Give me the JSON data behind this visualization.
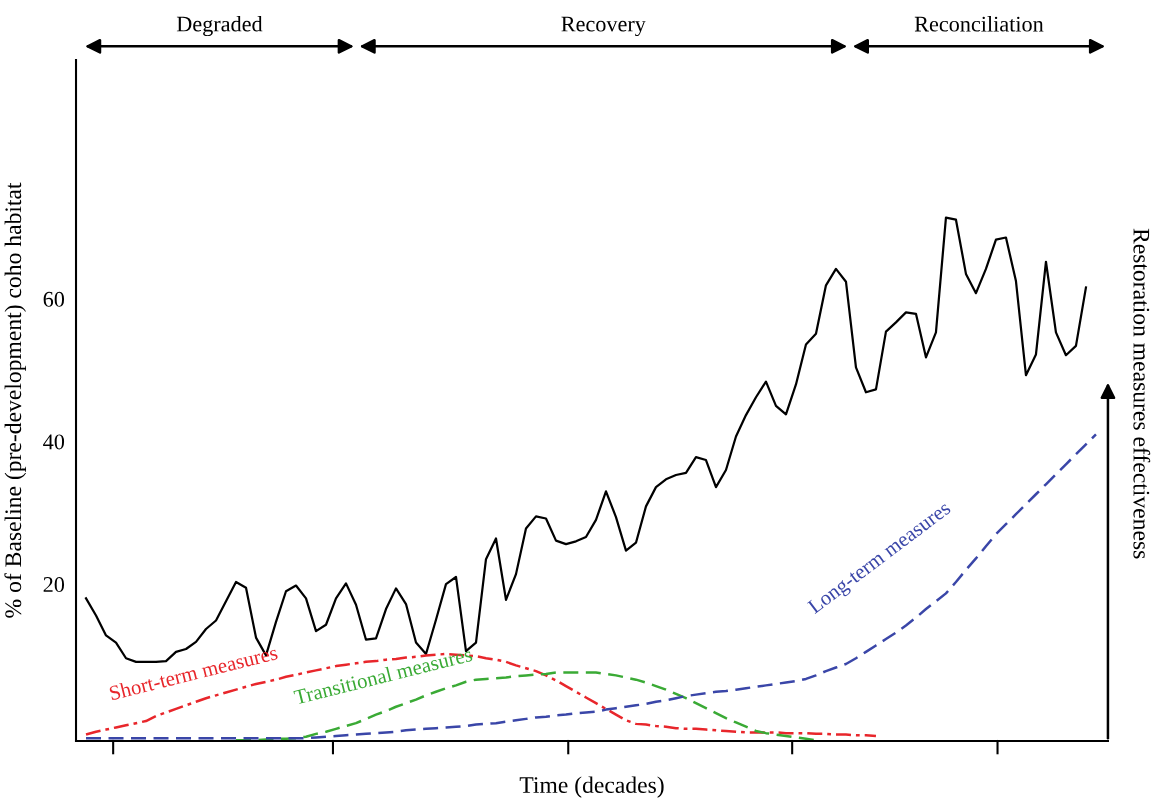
{
  "chart_data": {
    "type": "line",
    "xlabel": "Time (decades)",
    "ylabel": "% of Baseline (pre-development) coho habitat",
    "y2label": "Restoration measures effectiveness",
    "ylim": [
      -2,
      93.5
    ],
    "yticks": [
      20,
      40,
      60
    ],
    "grid": false,
    "legend": false,
    "annotations": [
      "Degraded",
      "Recovery",
      "Reconciliation"
    ],
    "categories": [
      null,
      null,
      null,
      null,
      null,
      null,
      null,
      null,
      null,
      null,
      null,
      null,
      null,
      null,
      null,
      null,
      null,
      null,
      null,
      null,
      null,
      null,
      null,
      null,
      null,
      null,
      null,
      null,
      null,
      null,
      null,
      null,
      null,
      null,
      null,
      null,
      null,
      null,
      null,
      null,
      null,
      null,
      null,
      null,
      null,
      null,
      null,
      null,
      null,
      null,
      null,
      null,
      null,
      null,
      null,
      null,
      null,
      null,
      null,
      null,
      null,
      null,
      null,
      null,
      null,
      null,
      null,
      null,
      null,
      null,
      null,
      null,
      null,
      null,
      null,
      null,
      null,
      null,
      null,
      null,
      null,
      null,
      null,
      null,
      null,
      null,
      null,
      null,
      null,
      null,
      null,
      null,
      null,
      null,
      null,
      null,
      null,
      null,
      null,
      null,
      null,
      null
    ],
    "series": [
      {
        "color": "#000000",
        "line_style": "solid",
        "values": [
          18.0,
          15.6,
          12.8,
          11.8,
          9.6,
          9.1,
          9.1,
          9.1,
          9.2,
          10.5,
          10.9,
          11.9,
          13.7,
          14.9,
          17.6,
          20.3,
          19.5,
          12.5,
          10.0,
          14.7,
          19.0,
          19.8,
          18.0,
          13.4,
          14.3,
          18.0,
          20.1,
          17.1,
          12.2,
          12.4,
          16.5,
          19.4,
          17.2,
          11.8,
          10.2,
          15.0,
          20.0,
          21.0,
          10.6,
          11.8,
          23.5,
          26.4,
          17.8,
          21.4,
          27.8,
          29.5,
          29.2,
          26.1,
          25.6,
          26.0,
          26.6,
          29.0,
          33.0,
          29.4,
          24.7,
          25.8,
          30.9,
          33.6,
          34.7,
          35.3,
          35.6,
          37.8,
          37.4,
          33.6,
          36.0,
          40.7,
          43.7,
          46.2,
          48.4,
          45.0,
          43.8,
          48.0,
          53.6,
          55.1,
          61.9,
          64.2,
          62.4,
          50.4,
          46.9,
          47.3,
          55.4,
          56.7,
          58.1,
          57.9,
          51.8,
          55.3,
          71.4,
          71.1,
          63.5,
          60.8,
          64.2,
          68.3,
          68.6,
          62.5,
          49.3,
          52.2,
          65.2,
          55.3,
          52.1,
          53.4,
          61.6,
          null
        ]
      },
      {
        "name": "Short-term measures",
        "color": "#e8262b",
        "line_style": "dashdot",
        "values": [
          -1.1,
          -0.7,
          -0.4,
          -0.1,
          0.2,
          0.5,
          0.8,
          1.5,
          2.0,
          2.5,
          3.0,
          3.5,
          4.0,
          4.4,
          4.8,
          5.2,
          5.6,
          6.0,
          6.3,
          6.6,
          7.0,
          7.3,
          7.6,
          7.9,
          8.2,
          8.5,
          8.7,
          8.9,
          9.1,
          9.2,
          9.4,
          9.5,
          9.7,
          9.8,
          10.0,
          10.1,
          10.2,
          10.1,
          10.0,
          9.9,
          9.6,
          9.4,
          9.1,
          8.6,
          8.2,
          7.8,
          7.2,
          6.5,
          5.7,
          4.9,
          4.1,
          3.3,
          2.5,
          1.7,
          0.9,
          0.4,
          0.3,
          0.1,
          0.0,
          -0.2,
          -0.3,
          -0.3,
          -0.4,
          -0.5,
          -0.6,
          -0.7,
          -0.8,
          -0.8,
          -0.8,
          -0.8,
          -0.9,
          -0.9,
          -0.9,
          -1.0,
          -1.0,
          -1.1,
          -1.1,
          -1.2,
          -1.2,
          -1.3,
          null,
          null,
          null,
          null,
          null,
          null,
          null,
          null,
          null,
          null,
          null,
          null,
          null,
          null,
          null,
          null,
          null,
          null,
          null,
          null,
          null,
          null
        ]
      },
      {
        "name": "Transitional measures",
        "color": "#3aaa35",
        "line_style": "dashed",
        "values": [
          null,
          null,
          null,
          null,
          null,
          null,
          null,
          null,
          null,
          null,
          null,
          null,
          null,
          null,
          null,
          -1.9,
          -1.9,
          -1.9,
          -1.8,
          -1.7,
          -1.7,
          -1.6,
          -1.4,
          -1.0,
          -0.7,
          -0.3,
          0.1,
          0.5,
          1.1,
          1.7,
          2.2,
          2.8,
          3.3,
          3.8,
          4.4,
          4.9,
          5.4,
          5.8,
          6.3,
          6.6,
          6.7,
          6.8,
          6.9,
          7.1,
          7.2,
          7.3,
          7.4,
          7.6,
          7.6,
          7.6,
          7.6,
          7.6,
          7.4,
          7.2,
          6.9,
          6.6,
          6.2,
          5.7,
          5.2,
          4.6,
          4.0,
          3.3,
          2.6,
          1.9,
          1.2,
          0.6,
          0.0,
          -0.6,
          -0.9,
          -1.1,
          -1.3,
          -1.5,
          -1.7,
          -1.9,
          null,
          null,
          null,
          null,
          null,
          null,
          null,
          null,
          null,
          null,
          null,
          null,
          null,
          null,
          null,
          null,
          null,
          null,
          null,
          null,
          null,
          null,
          null,
          null,
          null,
          null,
          null,
          null
        ]
      },
      {
        "name": "Long-term measures",
        "color": "#3a46a8",
        "line_style": "dashed",
        "values": [
          -1.6,
          -1.6,
          -1.6,
          -1.6,
          -1.6,
          -1.6,
          -1.6,
          -1.6,
          -1.6,
          -1.6,
          -1.6,
          -1.6,
          -1.6,
          -1.6,
          -1.6,
          -1.6,
          -1.6,
          -1.6,
          -1.6,
          -1.6,
          -1.6,
          -1.6,
          -1.6,
          -1.5,
          -1.4,
          -1.3,
          -1.2,
          -1.1,
          -1.0,
          -0.9,
          -0.8,
          -0.7,
          -0.5,
          -0.4,
          -0.3,
          -0.2,
          -0.1,
          0.0,
          0.1,
          0.3,
          0.4,
          0.5,
          0.7,
          0.9,
          1.1,
          1.3,
          1.4,
          1.6,
          1.7,
          1.9,
          2.0,
          2.1,
          2.4,
          2.6,
          2.8,
          3.0,
          3.2,
          3.5,
          3.7,
          4.0,
          4.3,
          4.5,
          4.7,
          4.9,
          5.0,
          5.2,
          5.4,
          5.6,
          5.8,
          6.0,
          6.2,
          6.4,
          6.7,
          7.2,
          7.8,
          8.3,
          8.8,
          9.6,
          10.5,
          11.4,
          12.3,
          13.2,
          14.2,
          15.3,
          16.5,
          17.6,
          18.7,
          20.3,
          22.0,
          23.6,
          25.3,
          27.0,
          28.4,
          29.8,
          31.2,
          32.6,
          34.0,
          35.4,
          36.8,
          38.2,
          39.6,
          41.0
        ]
      }
    ]
  }
}
